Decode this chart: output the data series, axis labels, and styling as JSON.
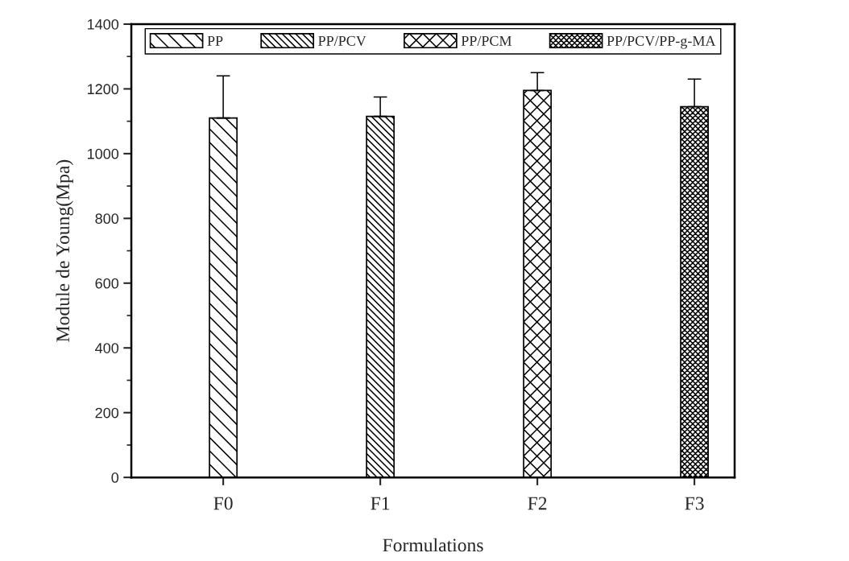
{
  "chart_data": {
    "type": "bar",
    "xlabel": "Formulations",
    "ylabel": "Module de Young(Mpa)",
    "categories": [
      "F0",
      "F1",
      "F2",
      "F3"
    ],
    "series": [
      {
        "name": "PP",
        "color": "#000000",
        "values": [
          1110,
          null,
          null,
          null
        ],
        "errors": [
          [
            1110,
            1240
          ],
          null,
          null,
          null
        ]
      },
      {
        "name": "PP/PCV",
        "color": "#000000",
        "values": [
          null,
          1115,
          null,
          null
        ],
        "errors": [
          null,
          [
            1115,
            1175
          ],
          null,
          null
        ]
      },
      {
        "name": "PP/PCM",
        "color": "#000000",
        "values": [
          null,
          null,
          1195,
          null
        ],
        "errors": [
          null,
          null,
          [
            1195,
            1250
          ],
          null
        ]
      },
      {
        "name": "PP/PCV/PP-g-MA",
        "color": "#000000",
        "values": [
          null,
          null,
          null,
          1145
        ],
        "errors": [
          null,
          null,
          null,
          [
            1145,
            1230
          ]
        ]
      }
    ],
    "ylim": [
      0,
      1400
    ],
    "yticks": [
      0,
      200,
      400,
      600,
      800,
      1000,
      1200,
      1400
    ],
    "legend": "top"
  }
}
